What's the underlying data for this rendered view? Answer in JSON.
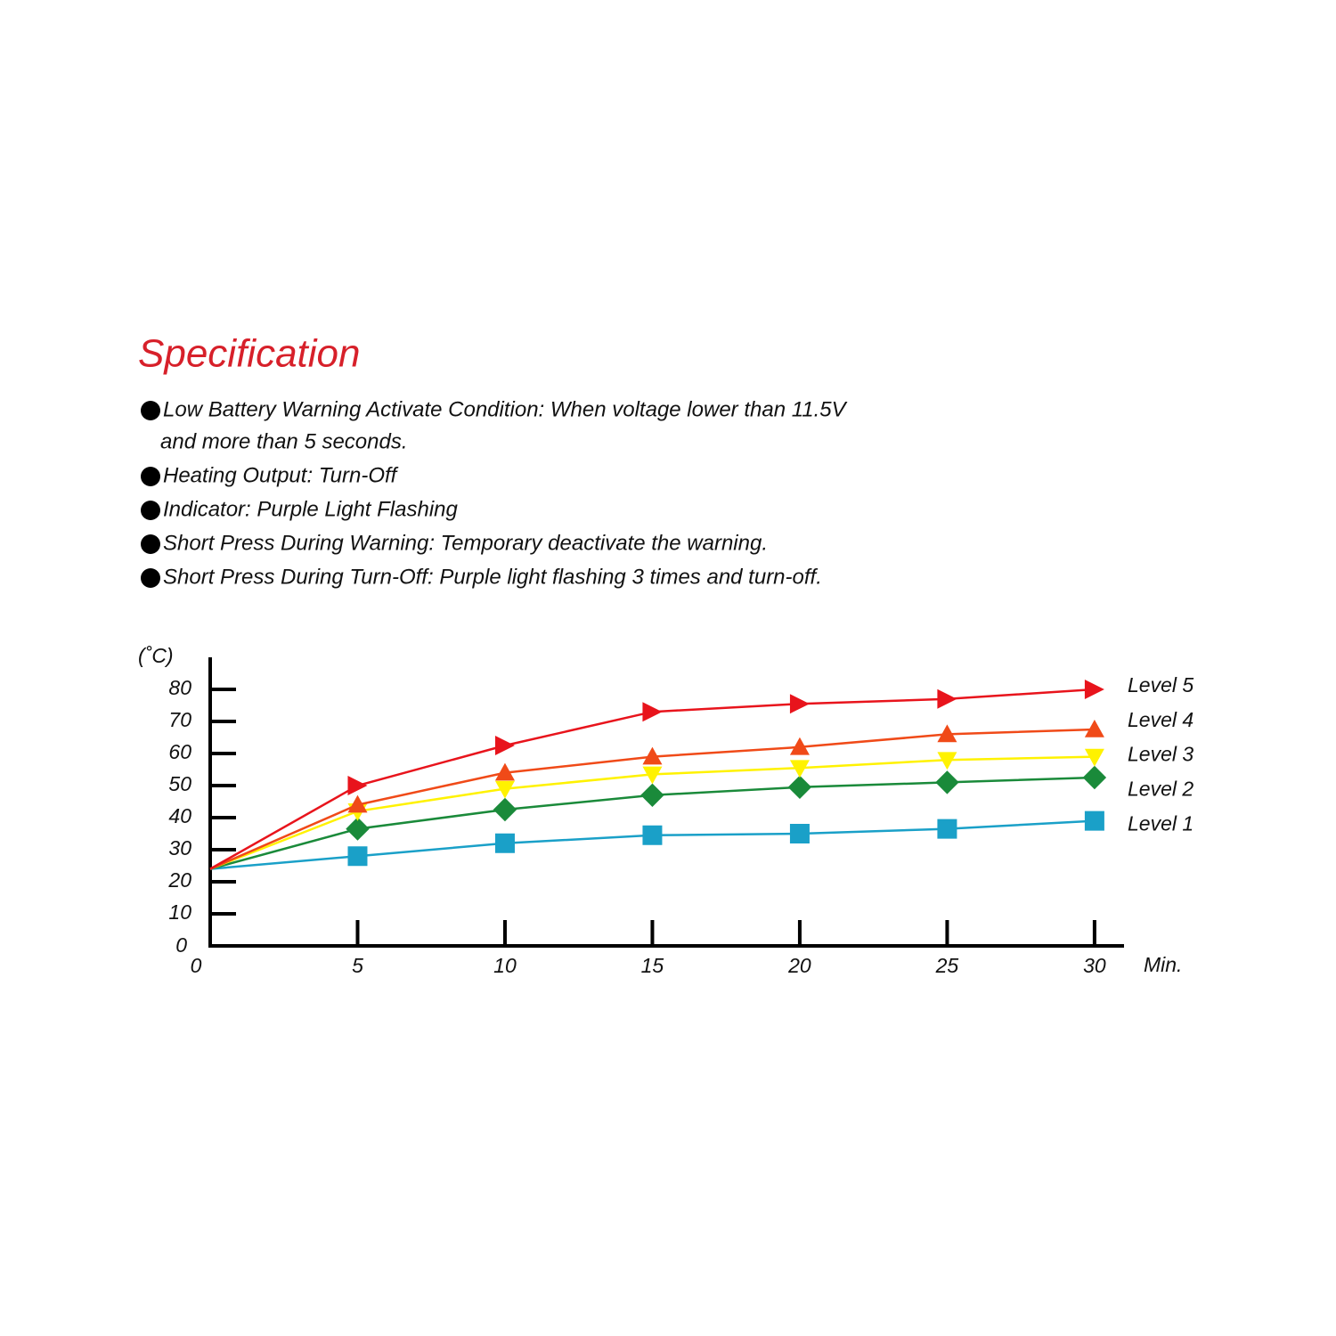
{
  "header": {
    "title": "Specification"
  },
  "bullets": [
    [
      "Low Battery Warning Activate Condition: When voltage lower than 11.5V",
      "and more than 5 seconds."
    ],
    [
      "Heating Output: Turn-Off"
    ],
    [
      "Indicator: Purple Light Flashing"
    ],
    [
      "Short Press During Warning: Temporary deactivate the warning."
    ],
    [
      "Short Press During Turn-Off: Purple light flashing 3 times and turn-off."
    ]
  ],
  "chart_data": {
    "type": "line",
    "y_label": "(˚C)",
    "x_label": "Min.",
    "x": [
      0,
      5,
      10,
      15,
      20,
      25,
      30
    ],
    "xlim": [
      0,
      31
    ],
    "xticks": [
      0,
      5,
      10,
      15,
      20,
      25,
      30
    ],
    "ylim": [
      0,
      90
    ],
    "yticks": [
      0,
      10,
      20,
      30,
      40,
      50,
      60,
      70,
      80
    ],
    "series": [
      {
        "name": "Level 5",
        "color": "#e8141c",
        "marker": "triangle-right",
        "values": [
          24,
          50,
          62.5,
          73,
          75.5,
          77,
          80
        ]
      },
      {
        "name": "Level 4",
        "color": "#f04a18",
        "marker": "triangle-up",
        "values": [
          24,
          44,
          54,
          59,
          62,
          66,
          67.5
        ]
      },
      {
        "name": "Level 3",
        "color": "#fff200",
        "marker": "triangle-down",
        "values": [
          24,
          42,
          49,
          53.5,
          55.5,
          58,
          59
        ]
      },
      {
        "name": "Level 2",
        "color": "#1a8a3a",
        "marker": "diamond",
        "values": [
          24,
          36.5,
          42.5,
          47,
          49.5,
          51,
          52.5
        ]
      },
      {
        "name": "Level 1",
        "color": "#1aa0c8",
        "marker": "square",
        "values": [
          24,
          28,
          32,
          34.5,
          35,
          36.5,
          39
        ]
      }
    ]
  }
}
